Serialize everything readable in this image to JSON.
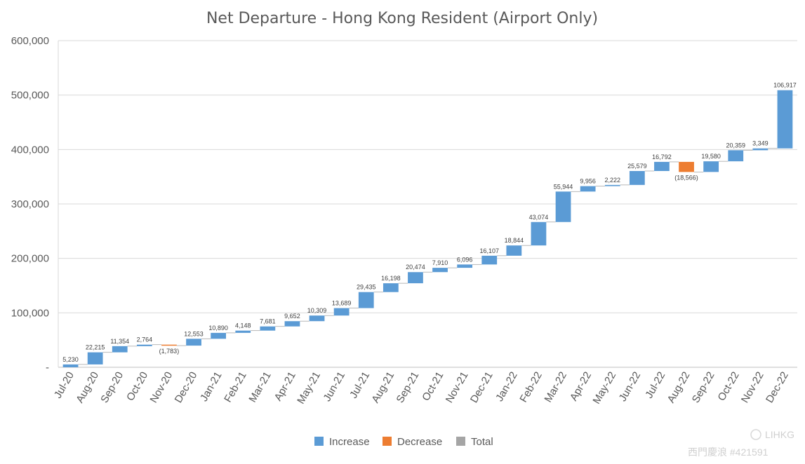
{
  "chart_data": {
    "type": "waterfall",
    "title": "Net Departure - Hong Kong Resident (Airport Only)",
    "xlabel": "",
    "ylabel": "",
    "ylim": [
      0,
      600000
    ],
    "yticks": [
      0,
      100000,
      200000,
      300000,
      400000,
      500000,
      600000
    ],
    "ytick_labels": [
      "-",
      "100,000",
      "200,000",
      "300,000",
      "400,000",
      "500,000",
      "600,000"
    ],
    "grid": true,
    "legend_position": "bottom",
    "categories": [
      "Jul-20",
      "Aug-20",
      "Sep-20",
      "Oct-20",
      "Nov-20",
      "Dec-20",
      "Jan-21",
      "Feb-21",
      "Mar-21",
      "Apr-21",
      "May-21",
      "Jun-21",
      "Jul-21",
      "Aug-21",
      "Sep-21",
      "Oct-21",
      "Nov-21",
      "Dec-21",
      "Jan-22",
      "Feb-22",
      "Mar-22",
      "Apr-22",
      "May-22",
      "Jun-22",
      "Jul-22",
      "Aug-22",
      "Sep-22",
      "Oct-22",
      "Nov-22",
      "Dec-22"
    ],
    "values": [
      5230,
      22215,
      11354,
      2764,
      -1783,
      12553,
      10890,
      4148,
      7681,
      9652,
      10309,
      13689,
      29435,
      16198,
      20474,
      7910,
      6096,
      16107,
      18844,
      43074,
      55944,
      9956,
      2222,
      25579,
      16792,
      -18566,
      19580,
      20359,
      3349,
      106917
    ],
    "value_labels": [
      "5,230",
      "22,215",
      "11,354",
      "2,764",
      "(1,783)",
      "12,553",
      "10,890",
      "4,148",
      "7,681",
      "9,652",
      "10,309",
      "13,689",
      "29,435",
      "16,198",
      "20,474",
      "7,910",
      "6,096",
      "16,107",
      "18,844",
      "43,074",
      "55,944",
      "9,956",
      "2,222",
      "25,579",
      "16,792",
      "(18,566)",
      "19,580",
      "20,359",
      "3,349",
      "106,917"
    ],
    "legend": [
      {
        "name": "Increase",
        "color": "#5b9bd5"
      },
      {
        "name": "Decrease",
        "color": "#ed7d31"
      },
      {
        "name": "Total",
        "color": "#a5a5a5"
      }
    ]
  },
  "watermark": {
    "line1": "LIHKG",
    "line2": "西門慶浪 #421591"
  }
}
